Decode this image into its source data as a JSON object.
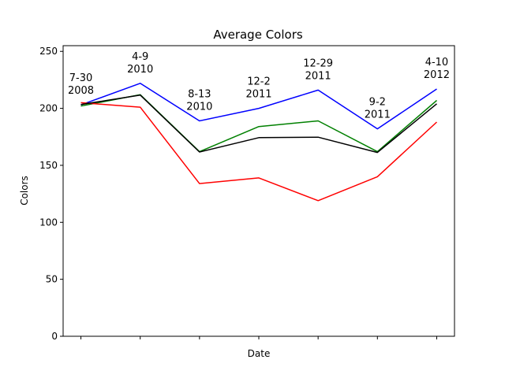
{
  "chart_data": {
    "type": "line",
    "title": "Average Colors",
    "xlabel": "Date",
    "ylabel": "Colors",
    "ylim": [
      0,
      255
    ],
    "yticks": [
      0,
      50,
      100,
      150,
      200,
      250
    ],
    "x": [
      0,
      1,
      2,
      3,
      4,
      5,
      6
    ],
    "grid": false,
    "legend": null,
    "annotations": [
      [
        "7-30",
        "2008"
      ],
      [
        "4-9",
        "2010"
      ],
      [
        "8-13",
        "2010"
      ],
      [
        "12-2",
        "2011"
      ],
      [
        "12-29",
        "2011"
      ],
      [
        "9-2",
        "2011"
      ],
      [
        "4-10",
        "2012"
      ]
    ],
    "series": [
      {
        "color": "#0000ff",
        "values": [
          203,
          222,
          189,
          200,
          216,
          182,
          217
        ]
      },
      {
        "color": "#008000",
        "values": [
          202,
          212,
          162,
          184,
          189,
          162,
          207
        ]
      },
      {
        "color": "#ff0000",
        "values": [
          205,
          201,
          134,
          139,
          119,
          140,
          188
        ]
      },
      {
        "color": "#000000",
        "values": [
          203.3,
          211.7,
          161.7,
          174.3,
          174.7,
          161.3,
          204
        ]
      }
    ]
  }
}
